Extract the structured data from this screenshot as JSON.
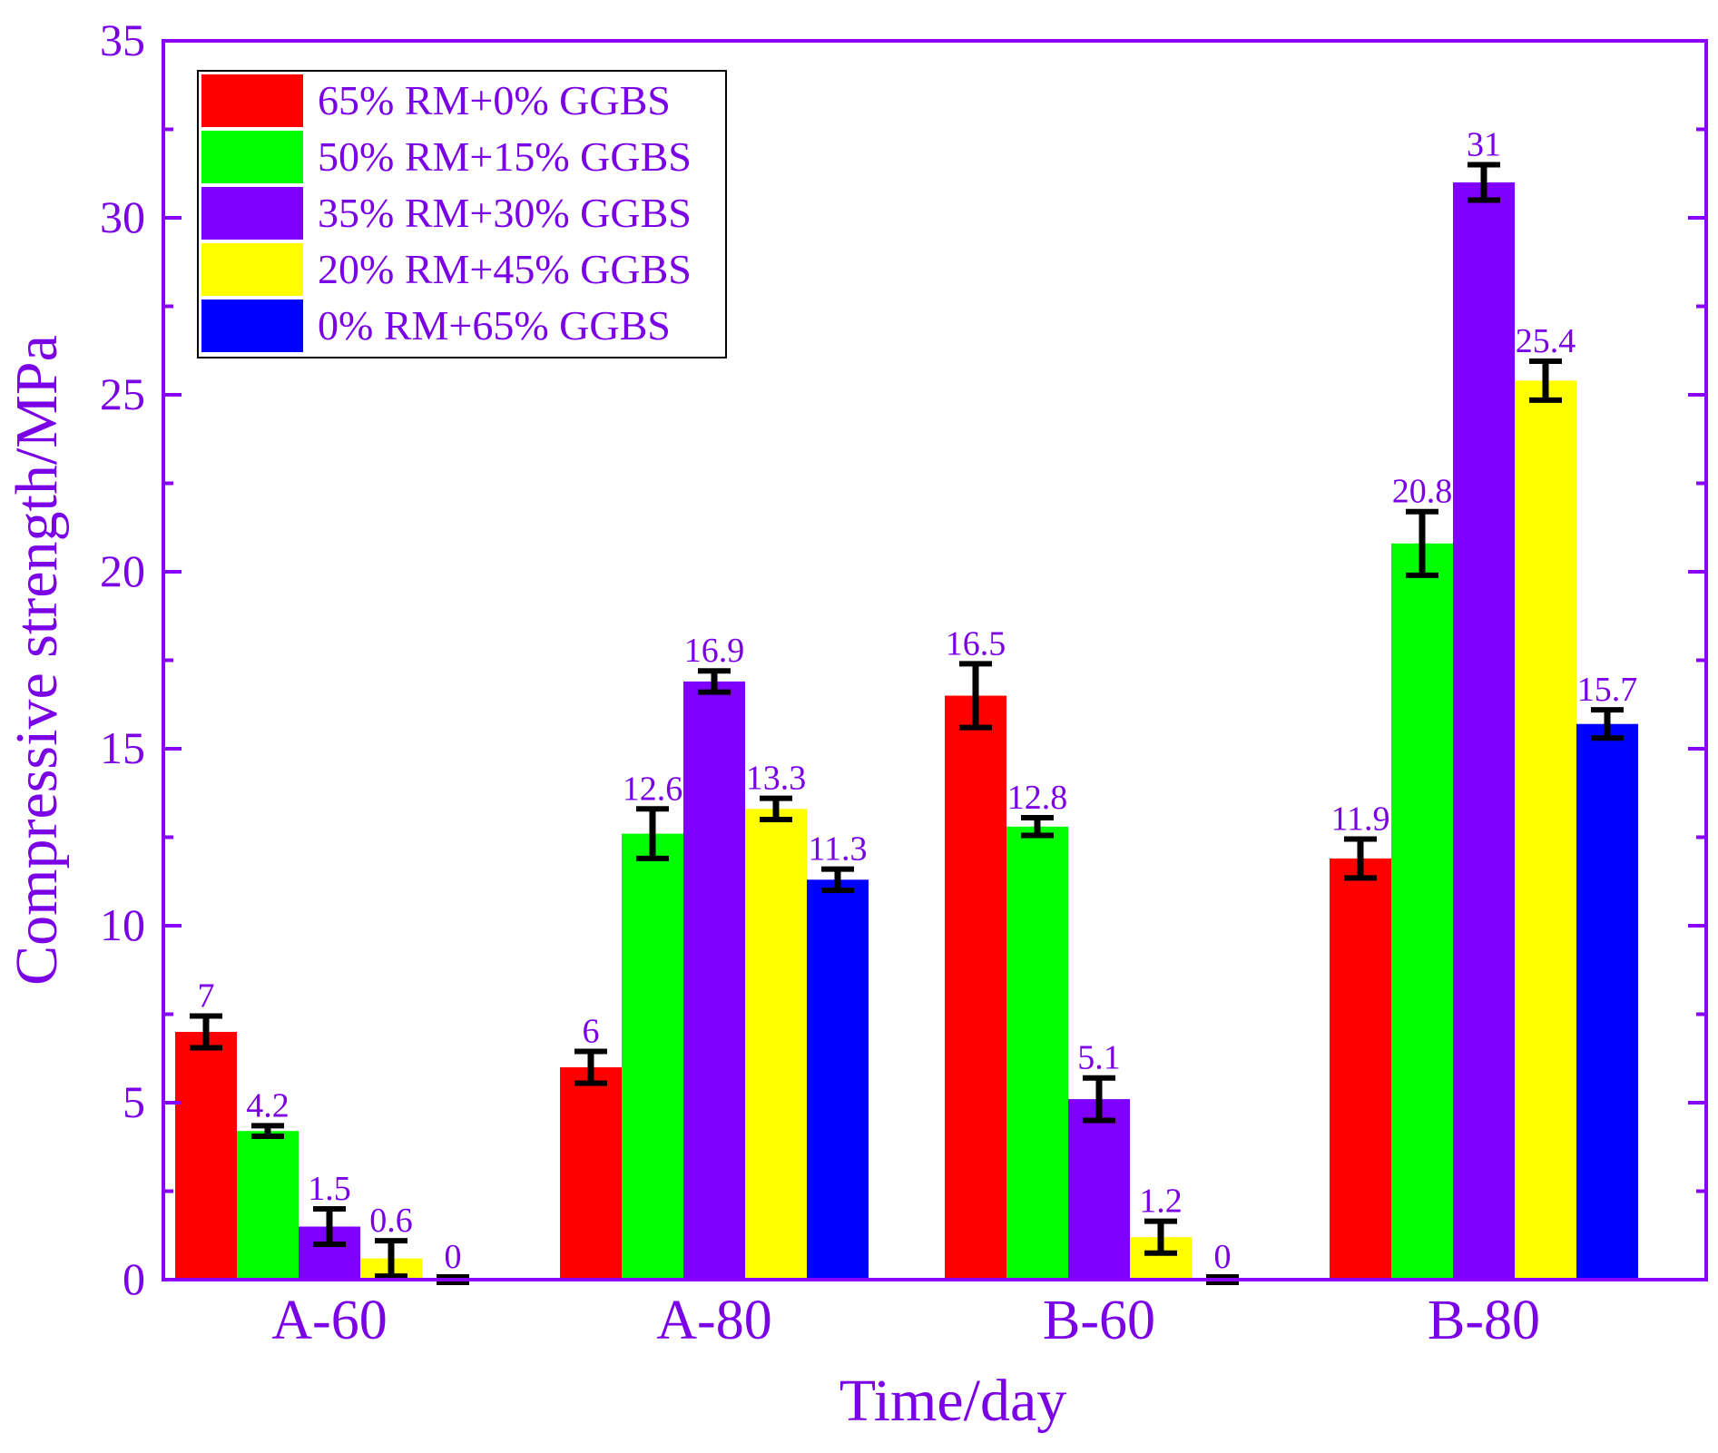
{
  "colors": {
    "axis": "#8a00ff",
    "text": "#7a00e6",
    "error_bar": "#000000",
    "legend_border": "#000000",
    "background": "#ffffff"
  },
  "chart_data": {
    "type": "bar",
    "title": "",
    "xlabel": "Time/day",
    "ylabel": "Compressive strength/MPa",
    "ylim": [
      0,
      35
    ],
    "yticks": [
      0,
      5,
      10,
      15,
      20,
      25,
      30,
      35
    ],
    "ytick_labels": [
      "0",
      "5",
      "10",
      "15",
      "20",
      "25",
      "30",
      "35"
    ],
    "categories": [
      "A-60",
      "A-80",
      "B-60",
      "B-80"
    ],
    "legend_position": "top-left",
    "grid": false,
    "series": [
      {
        "name": "65% RM+0% GGBS",
        "color": "#ff0000",
        "values": [
          7,
          6,
          16.5,
          11.9
        ],
        "labels": [
          "7",
          "6",
          "16.5",
          "11.9"
        ],
        "errors": [
          0.45,
          0.45,
          0.9,
          0.55
        ]
      },
      {
        "name": "50% RM+15% GGBS",
        "color": "#00ff00",
        "values": [
          4.2,
          12.6,
          12.8,
          20.8
        ],
        "labels": [
          "4.2",
          "12.6",
          "12.8",
          "20.8"
        ],
        "errors": [
          0.15,
          0.7,
          0.25,
          0.9
        ]
      },
      {
        "name": "35% RM+30% GGBS",
        "color": "#8000ff",
        "values": [
          1.5,
          16.9,
          5.1,
          31
        ],
        "labels": [
          "1.5",
          "16.9",
          "5.1",
          "31"
        ],
        "errors": [
          0.5,
          0.3,
          0.6,
          0.5
        ]
      },
      {
        "name": "20% RM+45% GGBS",
        "color": "#ffff00",
        "values": [
          0.6,
          13.3,
          1.2,
          25.4
        ],
        "labels": [
          "0.6",
          "13.3",
          "1.2",
          "25.4"
        ],
        "errors": [
          0.5,
          0.3,
          0.45,
          0.55
        ]
      },
      {
        "name": "0% RM+65% GGBS",
        "color": "#0000ff",
        "values": [
          0,
          11.3,
          0,
          15.7
        ],
        "labels": [
          "0",
          "11.3",
          "0",
          "15.7"
        ],
        "errors": [
          0,
          0.3,
          0,
          0.4
        ]
      }
    ]
  }
}
